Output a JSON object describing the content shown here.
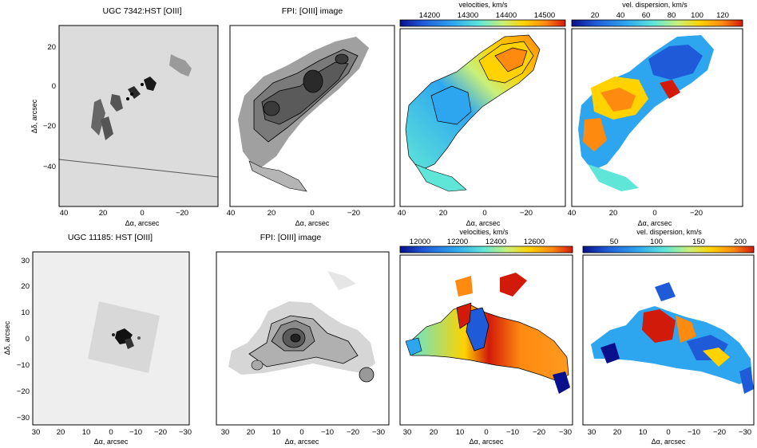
{
  "colors": {
    "background": "#ffffff",
    "frame": "#000000",
    "hst_gray": "#d9d9d9",
    "contour": "#000000",
    "colormap": [
      "#08108c",
      "#1f5ad9",
      "#2ea6ef",
      "#5fe6d8",
      "#c8f07a",
      "#ffd200",
      "#ff8a10",
      "#d21a0a"
    ]
  },
  "rows": [
    {
      "name": "UGC 7342",
      "panels": [
        {
          "kind": "hst",
          "title": "UGC 7342:HST [OIII]",
          "xlabel": "Δα, arcsec",
          "ylabel": "Δδ, arcsec",
          "xticks": [
            "40",
            "20",
            "0",
            "−20"
          ],
          "yticks": [
            "20",
            "0",
            "−20",
            "−40"
          ]
        },
        {
          "kind": "fpi",
          "title": "FPI: [OIII] image",
          "xlabel": "Δα, arcsec",
          "xticks": [
            "40",
            "20",
            "0",
            "−20"
          ]
        },
        {
          "kind": "velocity",
          "title": "velocities, km/s",
          "colorbar_ticks": [
            "14200",
            "14300",
            "14400",
            "14500"
          ],
          "colorbar_range": [
            14120,
            14560
          ],
          "xlabel": "Δα, arcsec",
          "xticks": [
            "40",
            "20",
            "0",
            "−20"
          ]
        },
        {
          "kind": "dispersion",
          "title": "vel. dispersion, km/s",
          "colorbar_ticks": [
            "20",
            "40",
            "60",
            "80",
            "100",
            "120"
          ],
          "colorbar_range": [
            5,
            130
          ],
          "xlabel": "Δα, arcsec",
          "xticks": [
            "40",
            "20",
            "0",
            "−20"
          ]
        }
      ]
    },
    {
      "name": "UGC 11185",
      "panels": [
        {
          "kind": "hst",
          "title": "UGC 11185: HST [OIII]",
          "xlabel": "Δα, arcsec",
          "ylabel": "Δδ, arcsec",
          "xticks": [
            "30",
            "20",
            "10",
            "0",
            "−10",
            "−20",
            "−30"
          ],
          "yticks": [
            "30",
            "20",
            "10",
            "0",
            "−10",
            "−20",
            "−30"
          ]
        },
        {
          "kind": "fpi",
          "title": "FPI: [OIII] image",
          "xlabel": "Δα, arcsec",
          "xticks": [
            "30",
            "20",
            "10",
            "0",
            "−10",
            "−20",
            "−30"
          ]
        },
        {
          "kind": "velocity",
          "title": "velocities, km/s",
          "colorbar_ticks": [
            "12000",
            "12200",
            "12400",
            "12600"
          ],
          "colorbar_range": [
            11880,
            12760
          ],
          "xlabel": "Δα, arcsec",
          "xticks": [
            "30",
            "20",
            "10",
            "0",
            "−10",
            "−20",
            "−30"
          ]
        },
        {
          "kind": "dispersion",
          "title": "vel. dispersion, km/s",
          "colorbar_ticks": [
            "50",
            "100",
            "150",
            "200"
          ],
          "colorbar_range": [
            10,
            215
          ],
          "xlabel": "Δα, arcsec",
          "xticks": [
            "30",
            "20",
            "10",
            "0",
            "−10",
            "−20",
            "−30"
          ]
        }
      ]
    }
  ]
}
